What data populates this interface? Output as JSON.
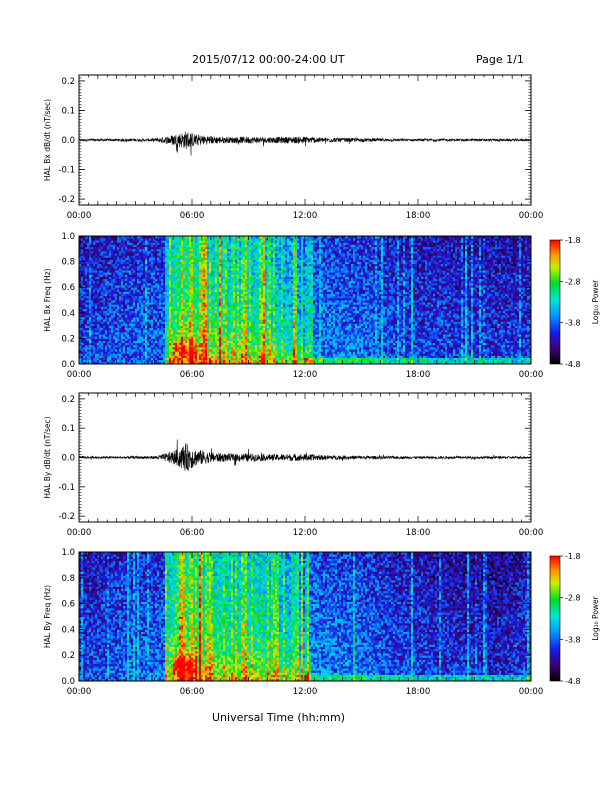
{
  "header": {
    "title": "2015/07/12  00:00-24:00 UT",
    "page": "Page 1/1"
  },
  "chart_data": [
    {
      "type": "line",
      "ylabel": "HAL Bx dB/dt (nT/sec)",
      "xlim": [
        0,
        24
      ],
      "ylim": [
        -0.22,
        0.22
      ],
      "x_ticks": [
        "00:00",
        "06:00",
        "12:00",
        "18:00",
        "00:00"
      ],
      "y_ticks": [
        "0.2",
        "0.1",
        "0.0",
        "-0.1",
        "-0.2"
      ],
      "series": [
        {
          "x": [
            0,
            2,
            4,
            4.6,
            5.2,
            5.7,
            6.2,
            7,
            8,
            9,
            10,
            11,
            12,
            13,
            14,
            15,
            16,
            18,
            20,
            22,
            24
          ],
          "amp": [
            0.004,
            0.004,
            0.005,
            0.012,
            0.022,
            0.032,
            0.02,
            0.014,
            0.01,
            0.012,
            0.01,
            0.011,
            0.012,
            0.008,
            0.007,
            0.006,
            0.005,
            0.004,
            0.004,
            0.004,
            0.004
          ]
        }
      ]
    },
    {
      "type": "heatmap",
      "ylabel": "HAL Bx Freq (Hz)",
      "xlim": [
        0,
        24
      ],
      "ylim": [
        0,
        1.0
      ],
      "x_ticks": [
        "00:00",
        "06:00",
        "12:00",
        "18:00",
        "00:00"
      ],
      "y_ticks": [
        "1.0",
        "0.8",
        "0.6",
        "0.4",
        "0.2",
        "0.0"
      ],
      "colorbar": {
        "label": "Log₁₀ Power",
        "range": [
          -4.8,
          -1.8
        ],
        "ticks": [
          "-1.8",
          "-2.8",
          "-3.8",
          "-4.8"
        ]
      }
    },
    {
      "type": "line",
      "ylabel": "HAL By dB/dt (nT/sec)",
      "xlim": [
        0,
        24
      ],
      "ylim": [
        -0.22,
        0.22
      ],
      "x_ticks": [
        "00:00",
        "06:00",
        "12:00",
        "18:00",
        "00:00"
      ],
      "y_ticks": [
        "0.2",
        "0.1",
        "0.0",
        "-0.1",
        "-0.2"
      ],
      "series": [
        {
          "x": [
            0,
            2,
            4,
            4.6,
            5.2,
            5.7,
            6.2,
            7,
            8,
            9,
            10,
            11,
            12,
            13,
            14,
            15,
            16,
            18,
            20,
            22,
            24
          ],
          "amp": [
            0.004,
            0.004,
            0.005,
            0.014,
            0.028,
            0.05,
            0.03,
            0.018,
            0.013,
            0.014,
            0.011,
            0.012,
            0.012,
            0.008,
            0.007,
            0.006,
            0.005,
            0.004,
            0.004,
            0.004,
            0.004
          ]
        }
      ]
    },
    {
      "type": "heatmap",
      "ylabel": "HAL By Freq (Hz)",
      "xlim": [
        0,
        24
      ],
      "ylim": [
        0,
        1.0
      ],
      "x_ticks": [
        "00:00",
        "06:00",
        "12:00",
        "18:00",
        "00:00"
      ],
      "y_ticks": [
        "1.0",
        "0.8",
        "0.6",
        "0.4",
        "0.2",
        "0.0"
      ],
      "colorbar": {
        "label": "Log₁₀ Power",
        "range": [
          -4.8,
          -1.8
        ],
        "ticks": [
          "-1.8",
          "-2.8",
          "-3.8",
          "-4.8"
        ]
      }
    }
  ],
  "xlabel": "Universal Time (hh:mm)",
  "colors": {
    "axis": "#000000",
    "trace": "#000000"
  }
}
